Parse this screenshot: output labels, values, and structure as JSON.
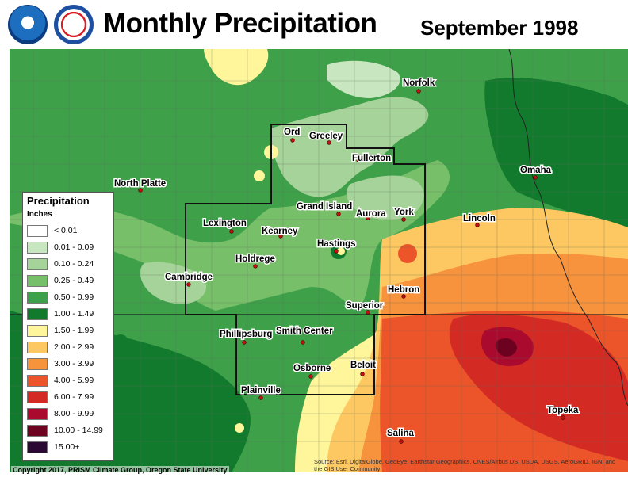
{
  "header": {
    "title": "Monthly Precipitation",
    "date": "September 1998",
    "logos": [
      {
        "name": "noaa-logo",
        "text": "NOAA"
      },
      {
        "name": "nws-logo",
        "text": "NATIONAL WEATHER SERVICE"
      }
    ]
  },
  "legend": {
    "title": "Precipitation",
    "units": "Inches",
    "classes": [
      {
        "label": "< 0.01",
        "color": "#ffffff"
      },
      {
        "label": "0.01 - 0.09",
        "color": "#c8e6c0"
      },
      {
        "label": "0.10 - 0.24",
        "color": "#a6d39a"
      },
      {
        "label": "0.25 - 0.49",
        "color": "#78bf6a"
      },
      {
        "label": "0.50 - 0.99",
        "color": "#3fa04a"
      },
      {
        "label": "1.00 - 1.49",
        "color": "#127a2c"
      },
      {
        "label": "1.50 - 1.99",
        "color": "#fff59a"
      },
      {
        "label": "2.00 - 2.99",
        "color": "#fdc862"
      },
      {
        "label": "3.00 - 3.99",
        "color": "#f7923d"
      },
      {
        "label": "4.00 - 5.99",
        "color": "#ec542a"
      },
      {
        "label": "6.00 - 7.99",
        "color": "#d42a24"
      },
      {
        "label": "8.00 - 9.99",
        "color": "#aa0a2e"
      },
      {
        "label": "10.00 - 14.99",
        "color": "#6c0220"
      },
      {
        "label": "15.00+",
        "color": "#2a0a33"
      }
    ]
  },
  "cities": [
    {
      "name": "Norfolk"
    },
    {
      "name": "Ord"
    },
    {
      "name": "Greeley"
    },
    {
      "name": "Fullerton"
    },
    {
      "name": "North Platte"
    },
    {
      "name": "Omaha"
    },
    {
      "name": "Grand Island"
    },
    {
      "name": "Aurora"
    },
    {
      "name": "York"
    },
    {
      "name": "Lexington"
    },
    {
      "name": "Kearney"
    },
    {
      "name": "Lincoln"
    },
    {
      "name": "Hastings"
    },
    {
      "name": "Holdrege"
    },
    {
      "name": "Cambridge"
    },
    {
      "name": "Hebron"
    },
    {
      "name": "Superior"
    },
    {
      "name": "Phillipsburg"
    },
    {
      "name": "Smith Center"
    },
    {
      "name": "Beloit"
    },
    {
      "name": "Osborne"
    },
    {
      "name": "Plainville"
    },
    {
      "name": "Topeka"
    },
    {
      "name": "Salina"
    }
  ],
  "footer": {
    "copyright": "Copyright 2017, PRISM Climate Group, Oregon State University",
    "credits": "Source: Esri, DigitalGlobe, GeoEye, Earthstar Geographics, CNES/Airbus DS, USDA, USGS, AeroGRID, IGN, and the GIS User Community"
  }
}
